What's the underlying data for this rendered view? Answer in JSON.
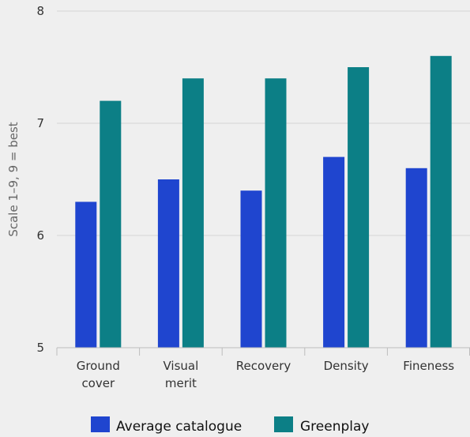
{
  "chart_data": {
    "type": "bar",
    "categories": [
      [
        "Ground",
        "cover"
      ],
      [
        "Visual",
        "merit"
      ],
      [
        "Recovery"
      ],
      [
        "Density"
      ],
      [
        "Fineness"
      ]
    ],
    "series": [
      {
        "name": "Average catalogue",
        "color": "#1f45cf",
        "values": [
          6.3,
          6.5,
          6.4,
          6.7,
          6.6
        ]
      },
      {
        "name": "Greenplay",
        "color": "#0c7f86",
        "values": [
          7.2,
          7.4,
          7.4,
          7.5,
          7.6
        ]
      }
    ],
    "ylabel": "Scale 1–9, 9 = best",
    "ylim": [
      5,
      8
    ],
    "yticks": [
      5,
      6,
      7,
      8
    ],
    "grid": true,
    "legend": "bottom-center"
  }
}
